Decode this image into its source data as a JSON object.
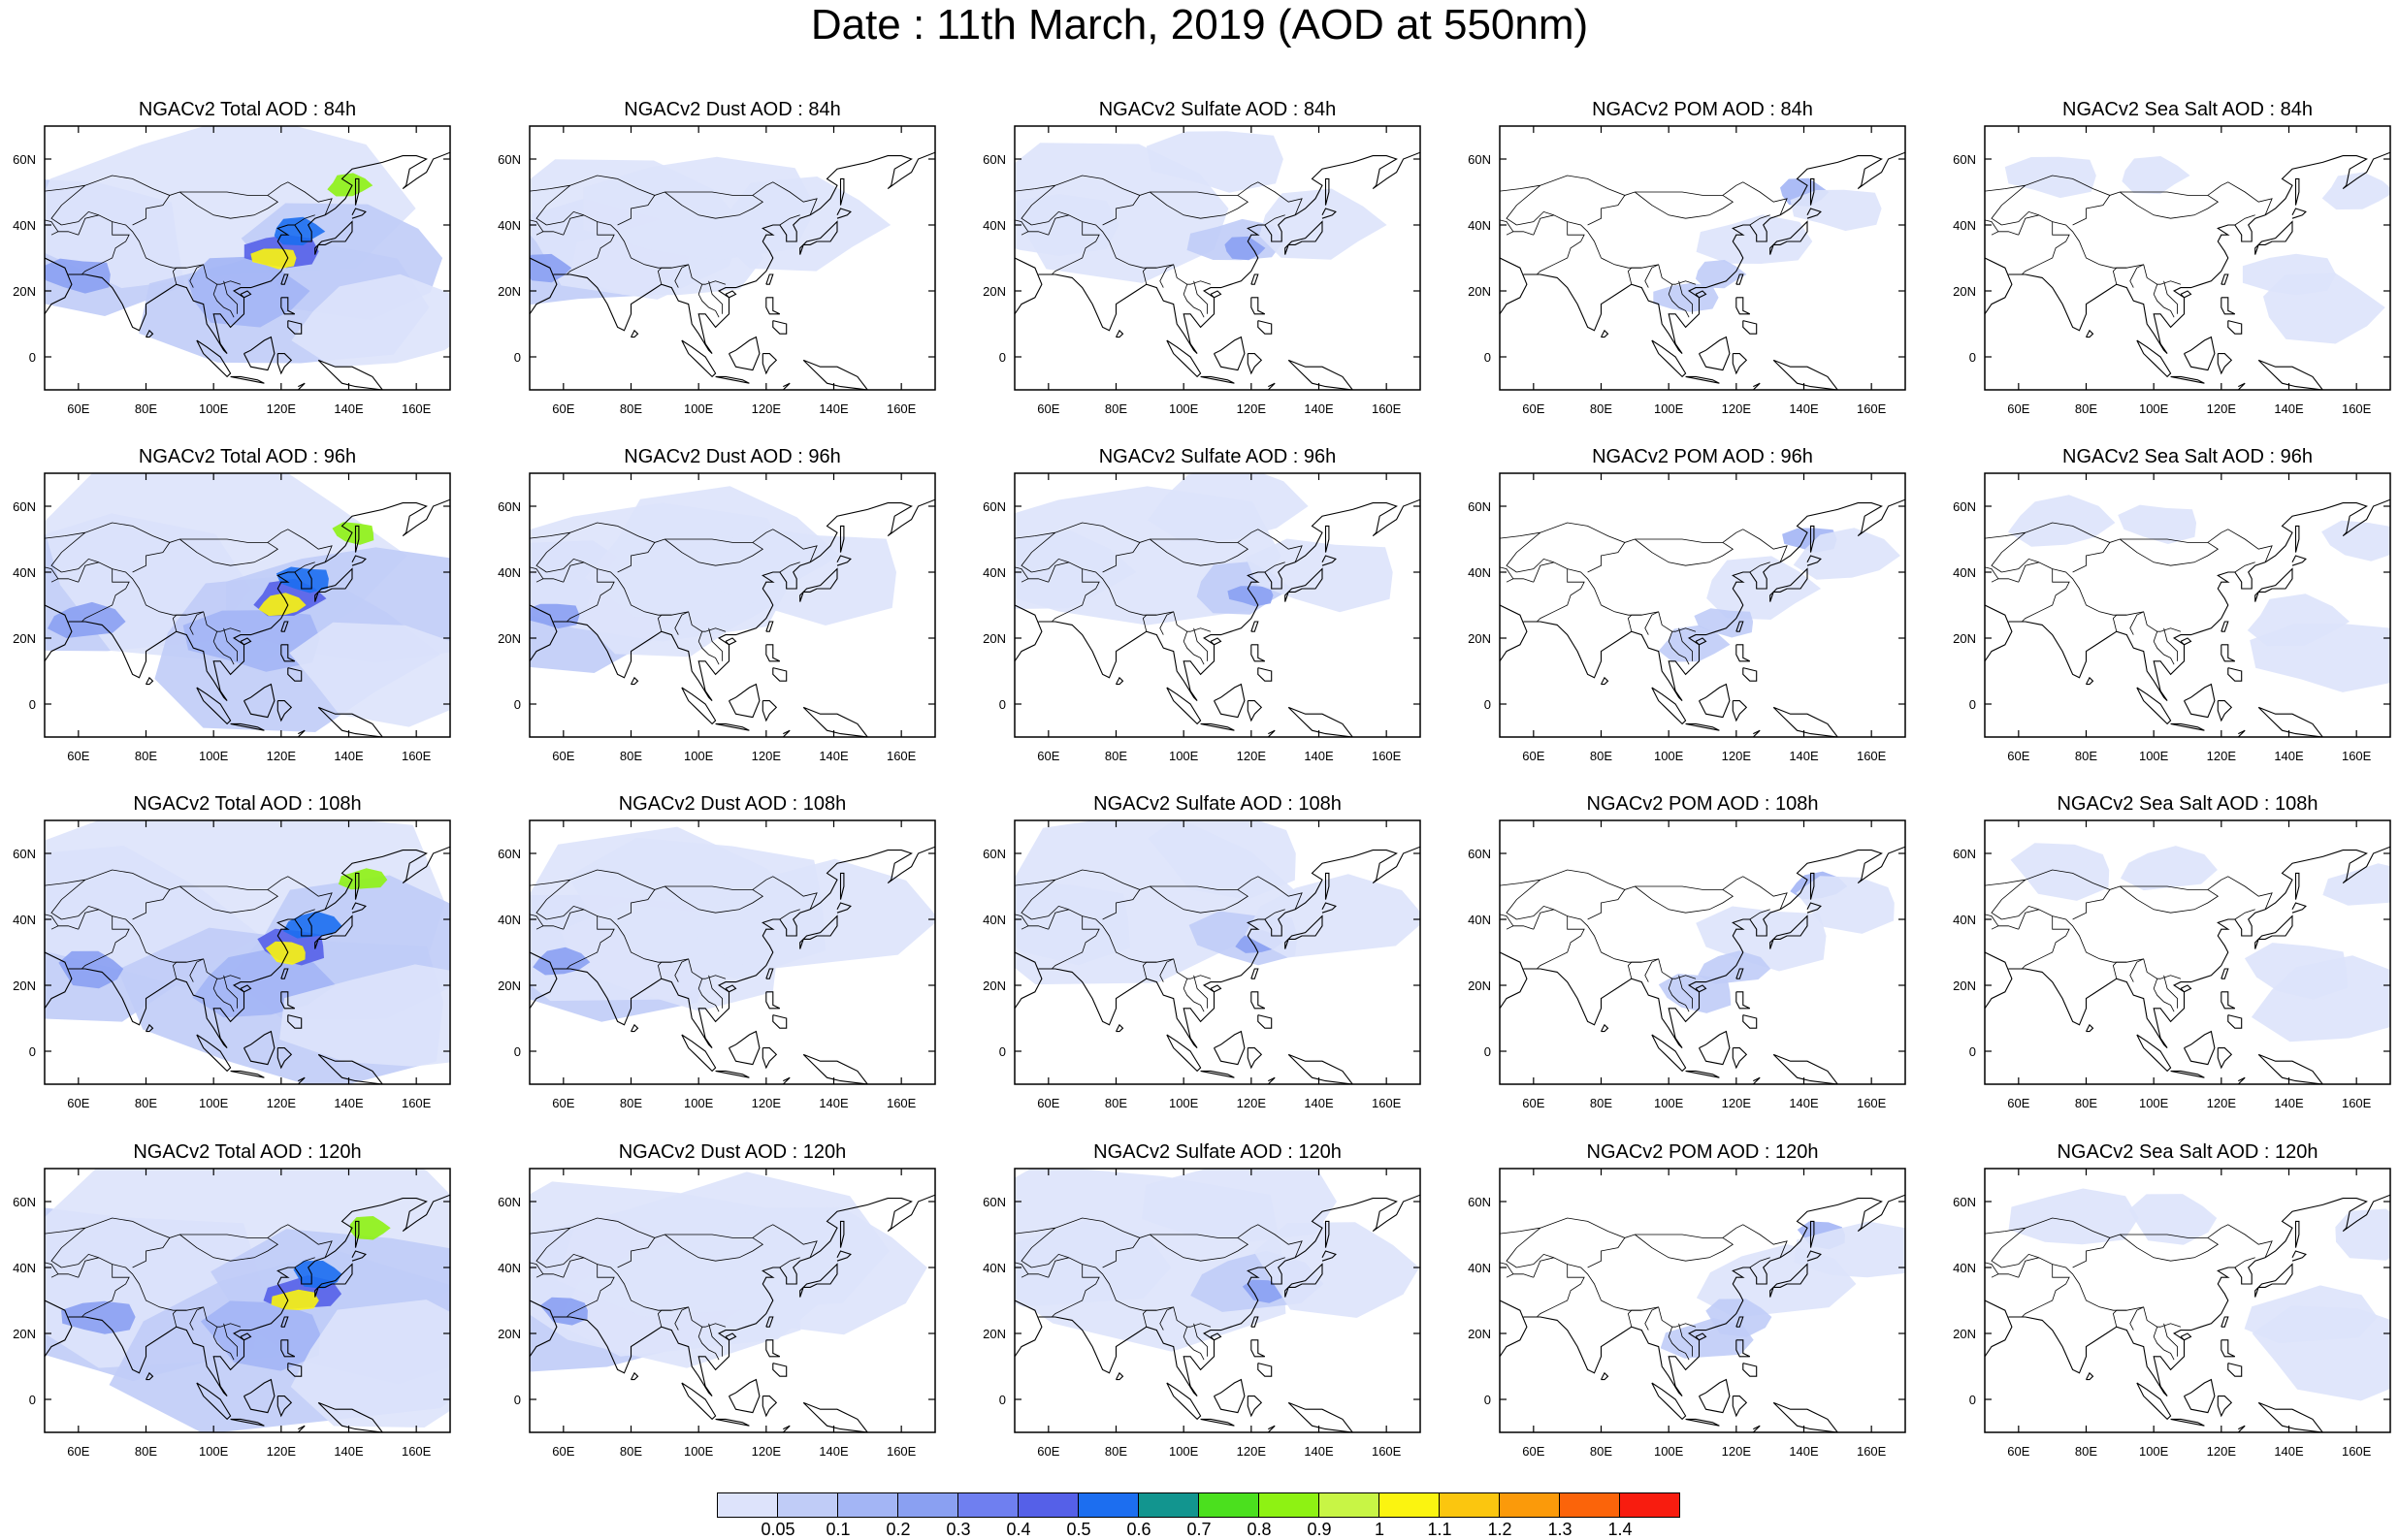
{
  "title": "Date : 11th March, 2019 (AOD at 550nm)",
  "map": {
    "lat_labels": [
      "60N",
      "40N",
      "20N",
      "0"
    ],
    "lon_labels": [
      "60E",
      "80E",
      "100E",
      "120E",
      "140E",
      "160E"
    ],
    "lon_range_deg": [
      50,
      170
    ],
    "lat_range_deg": [
      -10,
      70
    ]
  },
  "panels": [
    [
      {
        "title": "NGACv2 Total AOD : 84h",
        "species": "total",
        "lead": "84h"
      },
      {
        "title": "NGACv2 Dust AOD : 84h",
        "species": "dust",
        "lead": "84h"
      },
      {
        "title": "NGACv2 Sulfate AOD : 84h",
        "species": "sulfate",
        "lead": "84h"
      },
      {
        "title": "NGACv2 POM AOD : 84h",
        "species": "pom",
        "lead": "84h"
      },
      {
        "title": "NGACv2 Sea Salt AOD : 84h",
        "species": "seasalt",
        "lead": "84h"
      }
    ],
    [
      {
        "title": "NGACv2 Total AOD : 96h",
        "species": "total",
        "lead": "96h"
      },
      {
        "title": "NGACv2 Dust AOD : 96h",
        "species": "dust",
        "lead": "96h"
      },
      {
        "title": "NGACv2 Sulfate AOD : 96h",
        "species": "sulfate",
        "lead": "96h"
      },
      {
        "title": "NGACv2 POM AOD : 96h",
        "species": "pom",
        "lead": "96h"
      },
      {
        "title": "NGACv2 Sea Salt AOD : 96h",
        "species": "seasalt",
        "lead": "96h"
      }
    ],
    [
      {
        "title": "NGACv2 Total AOD : 108h",
        "species": "total",
        "lead": "108h"
      },
      {
        "title": "NGACv2 Dust AOD : 108h",
        "species": "dust",
        "lead": "108h"
      },
      {
        "title": "NGACv2 Sulfate AOD : 108h",
        "species": "sulfate",
        "lead": "108h"
      },
      {
        "title": "NGACv2 POM AOD : 108h",
        "species": "pom",
        "lead": "108h"
      },
      {
        "title": "NGACv2 Sea Salt AOD : 108h",
        "species": "seasalt",
        "lead": "108h"
      }
    ],
    [
      {
        "title": "NGACv2 Total AOD : 120h",
        "species": "total",
        "lead": "120h"
      },
      {
        "title": "NGACv2 Dust AOD : 120h",
        "species": "dust",
        "lead": "120h"
      },
      {
        "title": "NGACv2 Sulfate AOD : 120h",
        "species": "sulfate",
        "lead": "120h"
      },
      {
        "title": "NGACv2 POM AOD : 120h",
        "species": "pom",
        "lead": "120h"
      },
      {
        "title": "NGACv2 Sea Salt  AOD : 120h",
        "species": "seasalt",
        "lead": "120h"
      }
    ]
  ],
  "colorbar": {
    "labels": [
      "0.05",
      "0.1",
      "0.2",
      "0.3",
      "0.4",
      "0.5",
      "0.6",
      "0.7",
      "0.8",
      "0.9",
      "1",
      "1.1",
      "1.2",
      "1.3",
      "1.4"
    ],
    "colors": [
      "#ffffff",
      "#dde3fb",
      "#c0ccf7",
      "#a3b5f5",
      "#8aa0f2",
      "#6f7ff0",
      "#5560e8",
      "#1c6ef0",
      "#12958f",
      "#4be01e",
      "#8ef213",
      "#c8f545",
      "#fbf410",
      "#fbc60f",
      "#fb9a0a",
      "#fb640a",
      "#f81c0f"
    ]
  }
}
